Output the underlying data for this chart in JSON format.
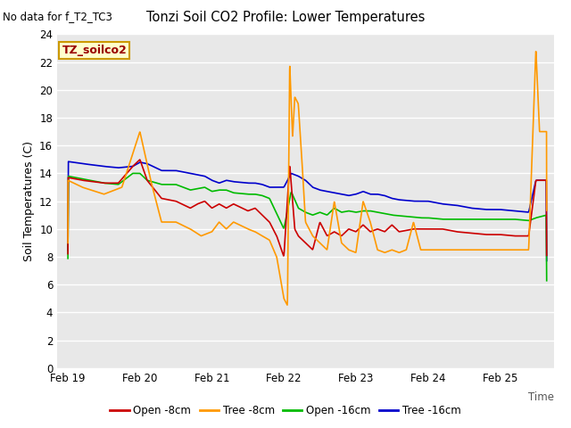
{
  "title": "Tonzi Soil CO2 Profile: Lower Temperatures",
  "subtitle": "No data for f_T2_TC3",
  "ylabel": "Soil Temperatures (C)",
  "xlabel": "Time",
  "ylim": [
    0,
    24
  ],
  "yticks": [
    0,
    2,
    4,
    6,
    8,
    10,
    12,
    14,
    16,
    18,
    20,
    22,
    24
  ],
  "xtick_labels": [
    "Feb 19",
    "Feb 20",
    "Feb 21",
    "Feb 22",
    "Feb 23",
    "Feb 24",
    "Feb 25"
  ],
  "xtick_positions": [
    0,
    1,
    2,
    3,
    4,
    5,
    6
  ],
  "xmin": -0.15,
  "xmax": 6.75,
  "bg_color": "#e8e8e8",
  "fig_color": "#ffffff",
  "legend_label": "TZ_soilco2",
  "legend_box_color": "#ffffcc",
  "legend_box_edge": "#cc9900",
  "series": {
    "open8": {
      "color": "#cc0000",
      "label": "Open -8cm",
      "lw": 1.2
    },
    "tree8": {
      "color": "#ff9900",
      "label": "Tree -8cm",
      "lw": 1.2
    },
    "open16": {
      "color": "#00bb00",
      "label": "Open -16cm",
      "lw": 1.2
    },
    "tree16": {
      "color": "#0000cc",
      "label": "Tree -16cm",
      "lw": 1.2
    }
  }
}
